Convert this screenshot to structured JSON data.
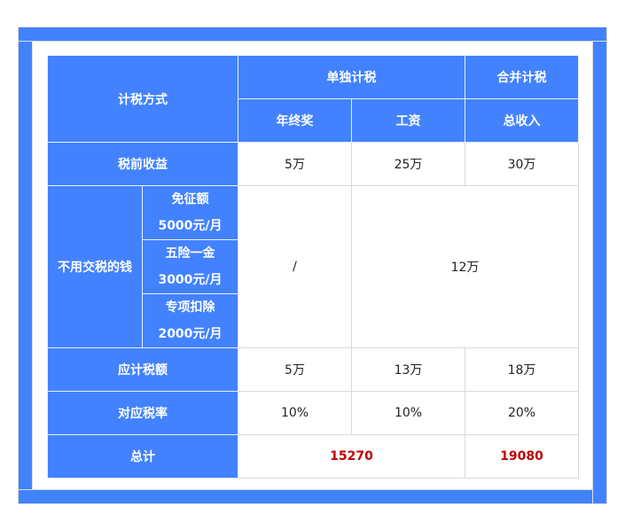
{
  "header": {
    "method": "计税方式",
    "separate": "单独计税",
    "combined": "合并计税",
    "bonus": "年终奖",
    "salary": "工资",
    "total_income": "总收入"
  },
  "rows": {
    "pretax": {
      "label": "税前收益",
      "values": [
        "5万",
        "25万",
        "30万"
      ]
    },
    "exempt": {
      "label": "不用交税的钱",
      "items": [
        {
          "name": "免征额",
          "amount": "5000元/月"
        },
        {
          "name": "五险一金",
          "amount": "3000元/月"
        },
        {
          "name": "专项扣除",
          "amount": "2000元/月"
        }
      ],
      "bonus": "/",
      "combined": "12万"
    },
    "taxable": {
      "label": "应计税额",
      "values": [
        "5万",
        "13万",
        "18万"
      ]
    },
    "rate": {
      "label": "对应税率",
      "values": [
        "10%",
        "10%",
        "20%"
      ]
    },
    "total": {
      "label": "总计",
      "separate": "15270",
      "combined": "19080"
    }
  },
  "colors": {
    "accent": "#4282ff",
    "highlight": "#c00000"
  }
}
